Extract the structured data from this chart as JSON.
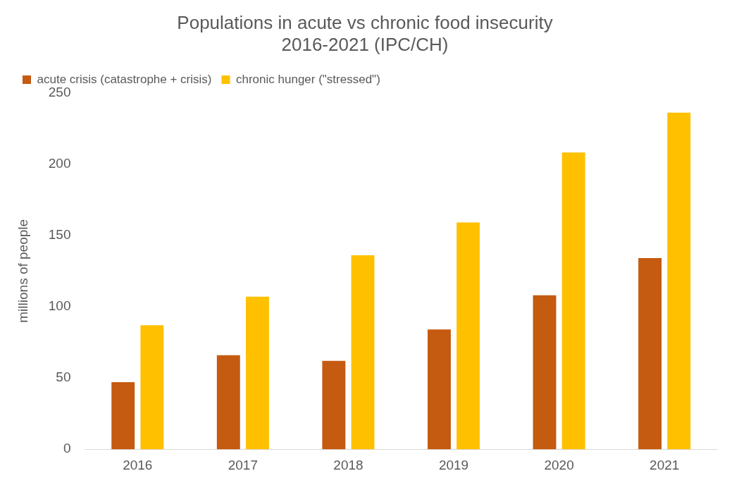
{
  "chart_data": {
    "type": "bar",
    "title": [
      "Populations in acute vs chronic food insecurity",
      "2016-2021 (IPC/CH)"
    ],
    "ylabel": "millions of people",
    "categories": [
      "2016",
      "2017",
      "2018",
      "2019",
      "2020",
      "2021"
    ],
    "series": [
      {
        "name": "acute crisis (catastrophe + crisis)",
        "color": "#c55a11",
        "values": [
          47,
          66,
          62,
          84,
          108,
          134
        ]
      },
      {
        "name": "chronic hunger (\"stressed\")",
        "color": "#ffc000",
        "values": [
          87,
          107,
          136,
          159,
          208,
          236
        ]
      }
    ],
    "ylim": [
      0,
      250
    ],
    "yticks": [
      0,
      50,
      100,
      150,
      200,
      250
    ],
    "grid": false,
    "legend": "top left"
  }
}
